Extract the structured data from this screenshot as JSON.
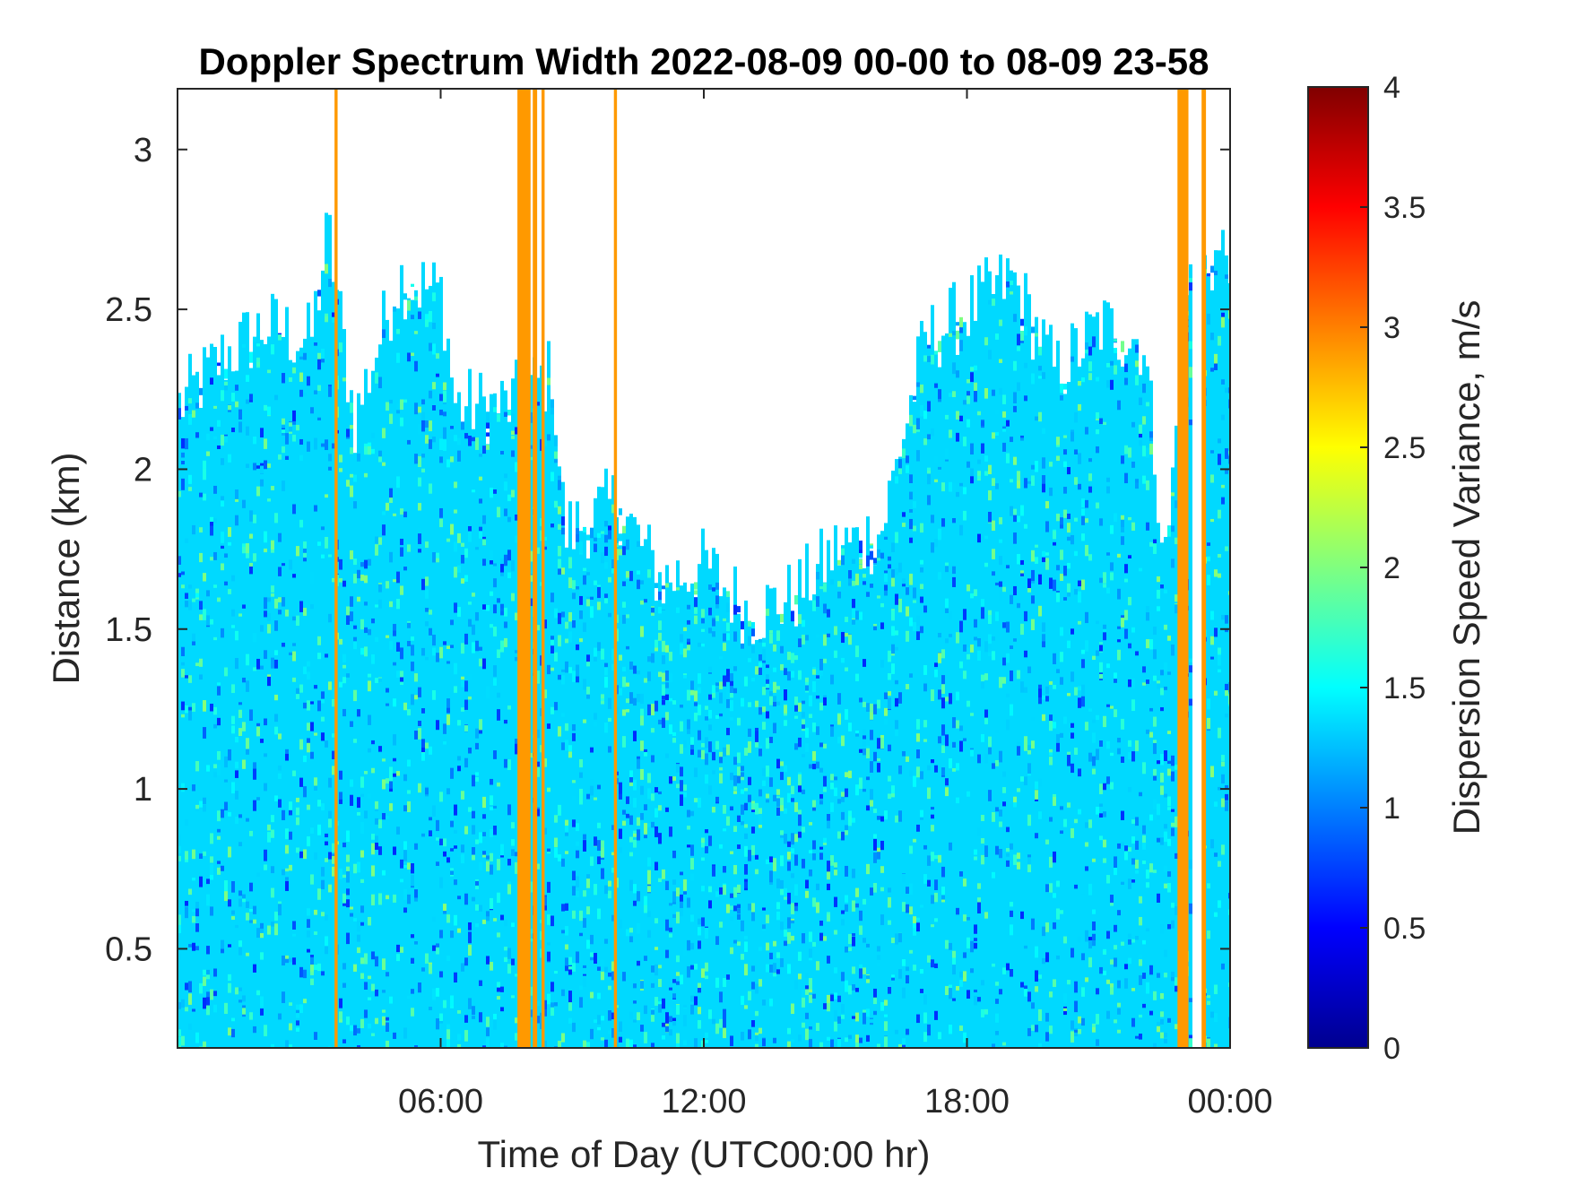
{
  "chart_data": {
    "type": "heatmap",
    "title": "Doppler Spectrum Width 2022-08-09 00-00 to 08-09 23-58",
    "xlabel": "Time of Day (UTC00:00 hr)",
    "ylabel": "Distance (km)",
    "colorbar_label": "Dispersion Speed Variance, m/s",
    "colormap": "jet",
    "xlim_hours": [
      0,
      24
    ],
    "ylim_km": [
      0.19,
      3.19
    ],
    "clim": [
      0,
      4
    ],
    "x_ticks": [
      {
        "hour": 6,
        "label": "06:00"
      },
      {
        "hour": 12,
        "label": "12:00"
      },
      {
        "hour": 18,
        "label": "18:00"
      },
      {
        "hour": 24,
        "label": "00:00"
      }
    ],
    "y_ticks": [
      {
        "value": 0.5,
        "label": "0.5"
      },
      {
        "value": 1,
        "label": "1"
      },
      {
        "value": 1.5,
        "label": "1.5"
      },
      {
        "value": 2,
        "label": "2"
      },
      {
        "value": 2.5,
        "label": "2.5"
      },
      {
        "value": 3,
        "label": "3"
      }
    ],
    "colorbar_ticks": [
      {
        "value": 0,
        "label": "0"
      },
      {
        "value": 0.5,
        "label": "0.5"
      },
      {
        "value": 1,
        "label": "1"
      },
      {
        "value": 1.5,
        "label": "1.5"
      },
      {
        "value": 2,
        "label": "2"
      },
      {
        "value": 2.5,
        "label": "2.5"
      },
      {
        "value": 3,
        "label": "3"
      },
      {
        "value": 3.5,
        "label": "3.5"
      },
      {
        "value": 4,
        "label": "4"
      }
    ],
    "typical_width_m_s": 1.35,
    "signal_top_km": [
      {
        "hour": 0.0,
        "top": 2.2
      },
      {
        "hour": 1.0,
        "top": 2.35
      },
      {
        "hour": 2.0,
        "top": 2.45
      },
      {
        "hour": 3.0,
        "top": 2.4
      },
      {
        "hour": 3.4,
        "top": 2.75
      },
      {
        "hour": 4.0,
        "top": 2.15
      },
      {
        "hour": 5.0,
        "top": 2.6
      },
      {
        "hour": 6.0,
        "top": 2.55
      },
      {
        "hour": 6.3,
        "top": 2.2
      },
      {
        "hour": 7.5,
        "top": 2.2
      },
      {
        "hour": 8.5,
        "top": 2.3
      },
      {
        "hour": 8.8,
        "top": 1.8
      },
      {
        "hour": 10.0,
        "top": 1.9
      },
      {
        "hour": 10.6,
        "top": 1.75
      },
      {
        "hour": 11.0,
        "top": 1.65
      },
      {
        "hour": 12.0,
        "top": 1.7
      },
      {
        "hour": 13.0,
        "top": 1.55
      },
      {
        "hour": 14.0,
        "top": 1.6
      },
      {
        "hour": 15.0,
        "top": 1.75
      },
      {
        "hour": 16.0,
        "top": 1.8
      },
      {
        "hour": 17.0,
        "top": 2.4
      },
      {
        "hour": 18.0,
        "top": 2.5
      },
      {
        "hour": 19.0,
        "top": 2.6
      },
      {
        "hour": 20.0,
        "top": 2.3
      },
      {
        "hour": 21.0,
        "top": 2.45
      },
      {
        "hour": 22.0,
        "top": 2.4
      },
      {
        "hour": 22.5,
        "top": 1.7
      },
      {
        "hour": 23.0,
        "top": 2.6
      },
      {
        "hour": 24.0,
        "top": 2.7
      }
    ],
    "data_gaps_hours": [
      [
        23.08,
        23.35
      ]
    ],
    "high_width_bands": [
      {
        "hour_start": 3.58,
        "hour_end": 3.65,
        "value": 2.9
      },
      {
        "hour_start": 7.75,
        "hour_end": 8.05,
        "value": 2.9
      },
      {
        "hour_start": 8.1,
        "hour_end": 8.2,
        "value": 2.9
      },
      {
        "hour_start": 8.3,
        "hour_end": 8.37,
        "value": 2.9
      },
      {
        "hour_start": 9.95,
        "hour_end": 10.02,
        "value": 2.9
      },
      {
        "hour_start": 22.8,
        "hour_end": 23.05,
        "value": 2.9
      },
      {
        "hour_start": 23.35,
        "hour_end": 23.45,
        "value": 2.9
      }
    ]
  }
}
